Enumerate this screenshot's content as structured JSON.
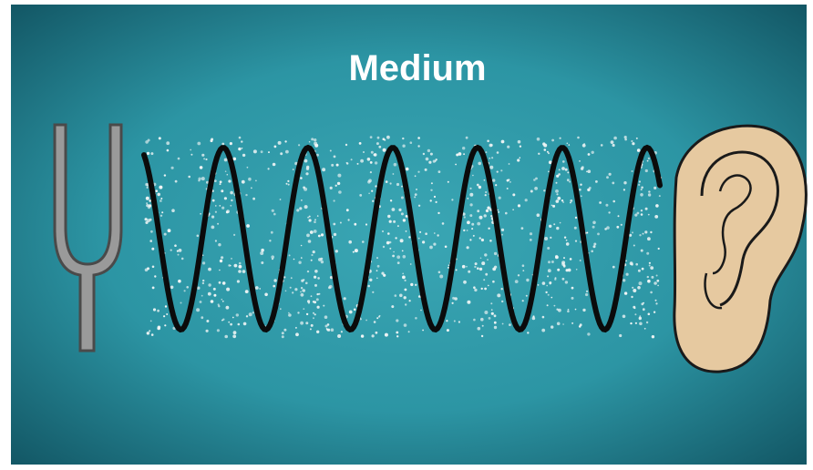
{
  "title": "Medium"
}
